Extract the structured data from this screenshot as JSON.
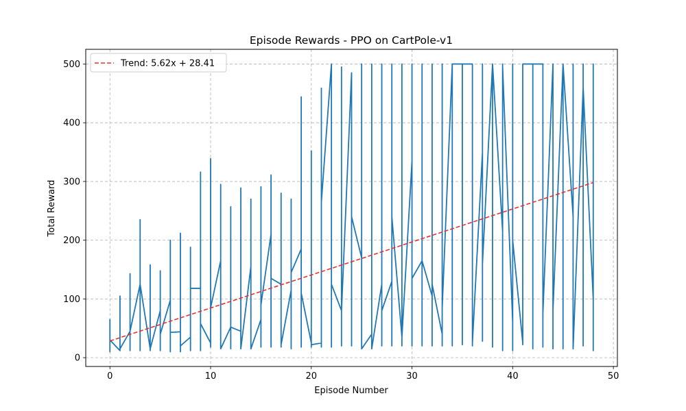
{
  "chart_data": {
    "type": "line",
    "title": "Episode Rewards - PPO on CartPole-v1",
    "xlabel": "Episode Number",
    "ylabel": "Total Reward",
    "xlim": [
      -2.4,
      50.4
    ],
    "ylim": [
      -15,
      525
    ],
    "xticks": [
      0,
      10,
      20,
      30,
      40,
      50
    ],
    "yticks": [
      0,
      100,
      200,
      300,
      400,
      500
    ],
    "grid": true,
    "legend_position": "top-left",
    "colors": {
      "series": "#1f77b4",
      "trend": "#e8302f"
    },
    "series": [
      {
        "style": "solid",
        "x": [
          0,
          0,
          0,
          0,
          1,
          1,
          1,
          1,
          2,
          2,
          2,
          2,
          3,
          3,
          3,
          3,
          4,
          4,
          4,
          4,
          5,
          5,
          5,
          5,
          6,
          6,
          6,
          6,
          7,
          7,
          7,
          7,
          8,
          8,
          8,
          8,
          9,
          9,
          9,
          9,
          10,
          10,
          10,
          10,
          11,
          11,
          11,
          11,
          12,
          12,
          12,
          12,
          13,
          13,
          13,
          13,
          14,
          14,
          14,
          14,
          15,
          15,
          15,
          15,
          16,
          16,
          16,
          16,
          17,
          17,
          17,
          17,
          18,
          18,
          18,
          18,
          19,
          19,
          19,
          19,
          20,
          20,
          20,
          20,
          21,
          21,
          21,
          21,
          22,
          22,
          22,
          22,
          23,
          23,
          23,
          23,
          24,
          24,
          24,
          24,
          25,
          25,
          25,
          25,
          26,
          26,
          26,
          26,
          27,
          27,
          27,
          27,
          28,
          28,
          28,
          28,
          29,
          29,
          29,
          29,
          30,
          30,
          30,
          30,
          31,
          31,
          31,
          31,
          32,
          32,
          32,
          32,
          33,
          33,
          33,
          33,
          34,
          34,
          34,
          34,
          35,
          35,
          35,
          35,
          36,
          36,
          36,
          36,
          37,
          37,
          37,
          37,
          38,
          38,
          38,
          38,
          39,
          39,
          39,
          39,
          40,
          40,
          40,
          40,
          41,
          41,
          41,
          41,
          42,
          42,
          42,
          42,
          43,
          43,
          43,
          43,
          44,
          44,
          44,
          44,
          45,
          45,
          45,
          45,
          46,
          46,
          46,
          46,
          47,
          47,
          47,
          47,
          48,
          48,
          48,
          48
        ],
        "y": [
          38,
          65,
          10,
          30,
          12,
          105,
          12,
          15,
          45,
          143,
          12,
          45,
          125,
          235,
          12,
          125,
          15,
          158,
          12,
          15,
          80,
          148,
          12,
          40,
          98,
          200,
          10,
          43,
          44,
          212,
          10,
          20,
          35,
          188,
          12,
          118,
          118,
          316,
          12,
          58,
          25,
          339,
          18,
          85,
          165,
          295,
          18,
          15,
          52,
          257,
          15,
          52,
          45,
          289,
          15,
          15,
          155,
          270,
          18,
          15,
          65,
          291,
          18,
          90,
          210,
          311,
          18,
          135,
          125,
          280,
          18,
          22,
          115,
          270,
          15,
          145,
          185,
          444,
          18,
          110,
          25,
          352,
          18,
          22,
          25,
          459,
          18,
          265,
          500,
          500,
          18,
          125,
          80,
          495,
          20,
          80,
          485,
          485,
          20,
          240,
          170,
          500,
          15,
          15,
          40,
          500,
          15,
          15,
          125,
          500,
          20,
          80,
          130,
          500,
          20,
          240,
          35,
          500,
          20,
          35,
          335,
          500,
          20,
          135,
          165,
          500,
          20,
          165,
          105,
          500,
          20,
          125,
          40,
          500,
          20,
          85,
          500,
          500,
          20,
          500,
          500,
          500,
          22,
          500,
          500,
          500,
          20,
          25,
          350,
          500,
          28,
          160,
          500,
          500,
          18,
          500,
          215,
          500,
          12,
          495,
          60,
          500,
          12,
          200,
          25,
          500,
          22,
          500,
          500,
          500,
          15,
          500,
          500,
          500,
          18,
          75,
          500,
          500,
          15,
          80,
          500,
          500,
          15,
          500,
          240,
          500,
          15,
          15,
          460,
          500,
          20,
          460,
          100,
          500,
          12,
          80
        ]
      },
      {
        "name": "Trend: 5.62x + 28.41",
        "style": "dashed",
        "x": [
          0,
          48
        ],
        "y": [
          28.41,
          298.17
        ]
      }
    ]
  }
}
